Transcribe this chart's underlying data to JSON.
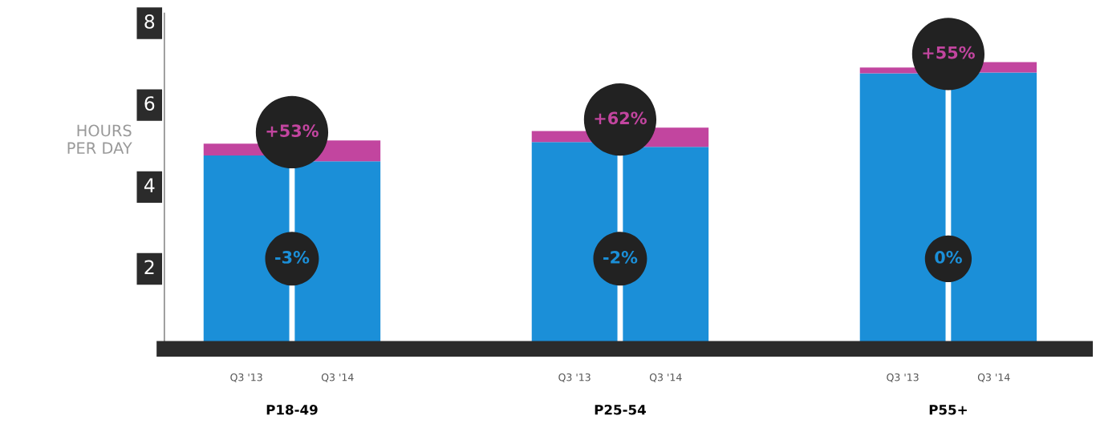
{
  "chart_data": {
    "type": "bar",
    "stacked": true,
    "categories": [
      "Q3 '13",
      "Q3 '14",
      "Q3 '13",
      "Q3 '14",
      "Q3 '13",
      "Q3 '14"
    ],
    "series": [
      {
        "color": "#1b8fd8",
        "values": [
          4.72,
          4.58,
          5.05,
          4.93,
          6.73,
          6.75
        ]
      },
      {
        "color": "#c2459f",
        "values": [
          0.29,
          0.51,
          0.27,
          0.47,
          0.14,
          0.25
        ]
      }
    ],
    "ylabel": "HOURS\nPER DAY",
    "ylim": [
      0,
      8.2
    ],
    "yticks": [
      2,
      4,
      6,
      8
    ],
    "grid": false,
    "annotations": [
      "P18-49",
      "P25-54",
      "P55+",
      "+53%",
      "-3%",
      "+62%",
      "-2%",
      "+55%",
      "0%"
    ]
  }
}
